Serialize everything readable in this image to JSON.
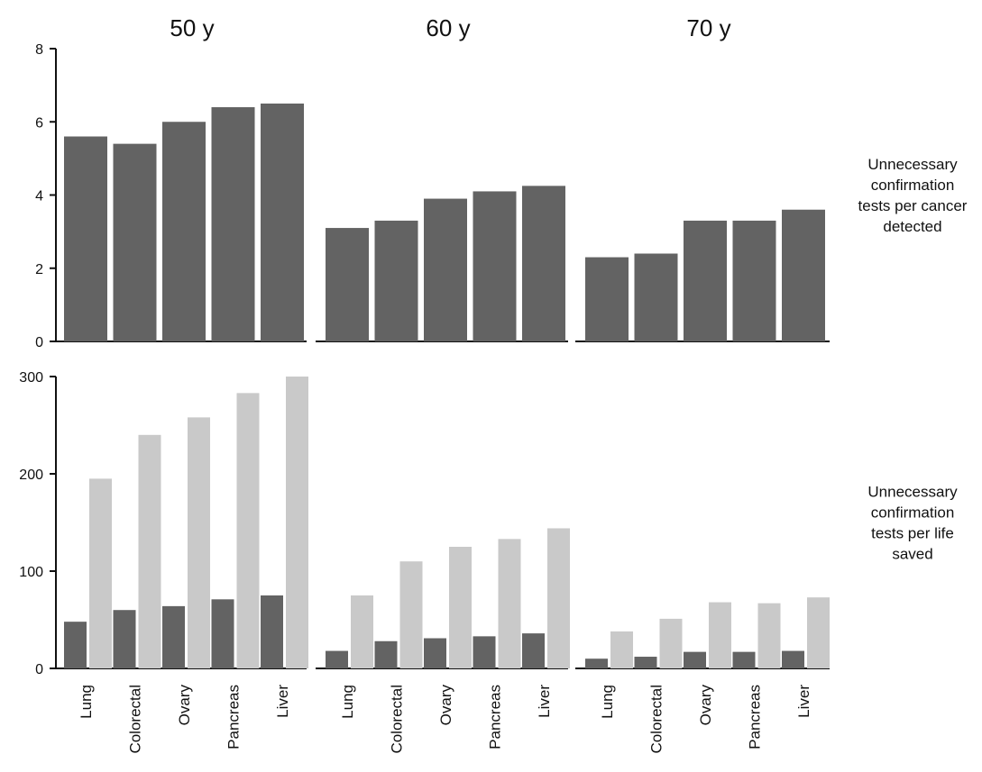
{
  "colors": {
    "dark": "#636363",
    "light": "#c9c9c9",
    "axis": "#111111"
  },
  "chart_data": {
    "type": "bar",
    "categories": [
      "Lung",
      "Colorectal",
      "Ovary",
      "Pancreas",
      "Liver"
    ],
    "columns": [
      "50 y",
      "60 y",
      "70 y"
    ],
    "rows": [
      {
        "label": "Unnecessary confirmation tests per cancer detected",
        "label_lines": [
          "Unnecessary",
          "confirmation",
          "tests per cancer",
          "detected"
        ],
        "ylim": [
          0,
          8
        ],
        "yticks": [
          0,
          2,
          4,
          6,
          8
        ],
        "panels": [
          {
            "series": [
              {
                "values": [
                  5.6,
                  5.4,
                  6.0,
                  6.4,
                  6.5
                ]
              }
            ]
          },
          {
            "series": [
              {
                "values": [
                  3.1,
                  3.3,
                  3.9,
                  4.1,
                  4.25
                ]
              }
            ]
          },
          {
            "series": [
              {
                "values": [
                  2.3,
                  2.4,
                  3.3,
                  3.3,
                  3.6
                ]
              }
            ]
          }
        ]
      },
      {
        "label": "Unnecessary confirmation tests per life saved",
        "label_lines": [
          "Unnecessary",
          "confirmation",
          "tests per life",
          "saved"
        ],
        "ylim": [
          0,
          300
        ],
        "yticks": [
          0,
          100,
          200,
          300
        ],
        "panels": [
          {
            "series": [
              {
                "values": [
                  48,
                  60,
                  64,
                  71,
                  75
                ]
              },
              {
                "values": [
                  195,
                  240,
                  258,
                  283,
                  300
                ]
              }
            ]
          },
          {
            "series": [
              {
                "values": [
                  18,
                  28,
                  31,
                  33,
                  36
                ]
              },
              {
                "values": [
                  75,
                  110,
                  125,
                  133,
                  144
                ]
              }
            ]
          },
          {
            "series": [
              {
                "values": [
                  10,
                  12,
                  17,
                  17,
                  18
                ]
              },
              {
                "values": [
                  38,
                  51,
                  68,
                  67,
                  73
                ]
              }
            ]
          }
        ]
      }
    ]
  }
}
